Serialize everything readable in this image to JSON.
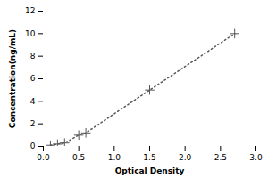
{
  "chart_data": {
    "type": "line",
    "xlabel": "Optical Density",
    "ylabel": "Concentration(ng/mL)",
    "x": [
      0.1,
      0.2,
      0.3,
      0.5,
      0.6,
      1.5,
      2.7
    ],
    "values": [
      0.1,
      0.2,
      0.3,
      1.0,
      1.2,
      5.0,
      10.0
    ],
    "xlim": [
      0,
      3
    ],
    "ylim": [
      0,
      12
    ],
    "xticks": [
      {
        "value": 0,
        "label": "0.0"
      },
      {
        "value": 0.5,
        "label": "0.5"
      },
      {
        "value": 1,
        "label": "1.0"
      },
      {
        "value": 1.5,
        "label": "1.5"
      },
      {
        "value": 2,
        "label": "2.0"
      },
      {
        "value": 2.5,
        "label": "2.5"
      },
      {
        "value": 3,
        "label": "3.0"
      }
    ],
    "yticks": [
      0,
      2,
      4,
      6,
      8,
      10,
      12
    ],
    "color": "#555555",
    "marker": "plus",
    "line_style": "dotted",
    "grid": false
  }
}
